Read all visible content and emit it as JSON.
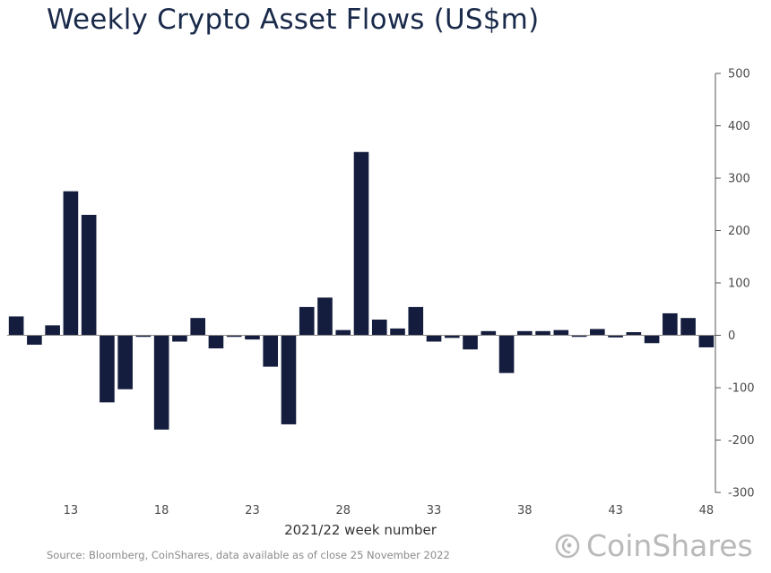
{
  "chart_data": {
    "type": "bar",
    "title": "Weekly Crypto Asset Flows (US$m)",
    "xlabel": "2021/22 week number",
    "ylabel": "",
    "ylim": [
      -300,
      500
    ],
    "yticks": [
      500,
      400,
      300,
      200,
      100,
      0,
      -100,
      -200,
      -300
    ],
    "xticks": [
      13,
      18,
      23,
      28,
      33,
      38,
      43,
      48
    ],
    "weeks": [
      10,
      11,
      12,
      13,
      14,
      15,
      16,
      17,
      18,
      19,
      20,
      21,
      22,
      23,
      24,
      25,
      26,
      27,
      28,
      29,
      30,
      31,
      32,
      33,
      34,
      35,
      36,
      37,
      38,
      39,
      40,
      41,
      42,
      43,
      44,
      45,
      46,
      47,
      48
    ],
    "values": [
      36,
      -18,
      19,
      275,
      230,
      -128,
      -103,
      -3,
      -180,
      -12,
      33,
      -25,
      -3,
      -8,
      -60,
      -170,
      54,
      72,
      10,
      350,
      30,
      13,
      54,
      -12,
      -5,
      -27,
      8,
      -72,
      8,
      8,
      10,
      -3,
      12,
      -4,
      6,
      -15,
      42,
      33,
      -23
    ],
    "bar_color": "#141d3d"
  },
  "source": "Source: Bloomberg, CoinShares, data available as of close 25 November 2022",
  "logo": {
    "text": "CoinShares",
    "icon": "coinshares-logo-icon",
    "color": "#b9b9b9"
  }
}
